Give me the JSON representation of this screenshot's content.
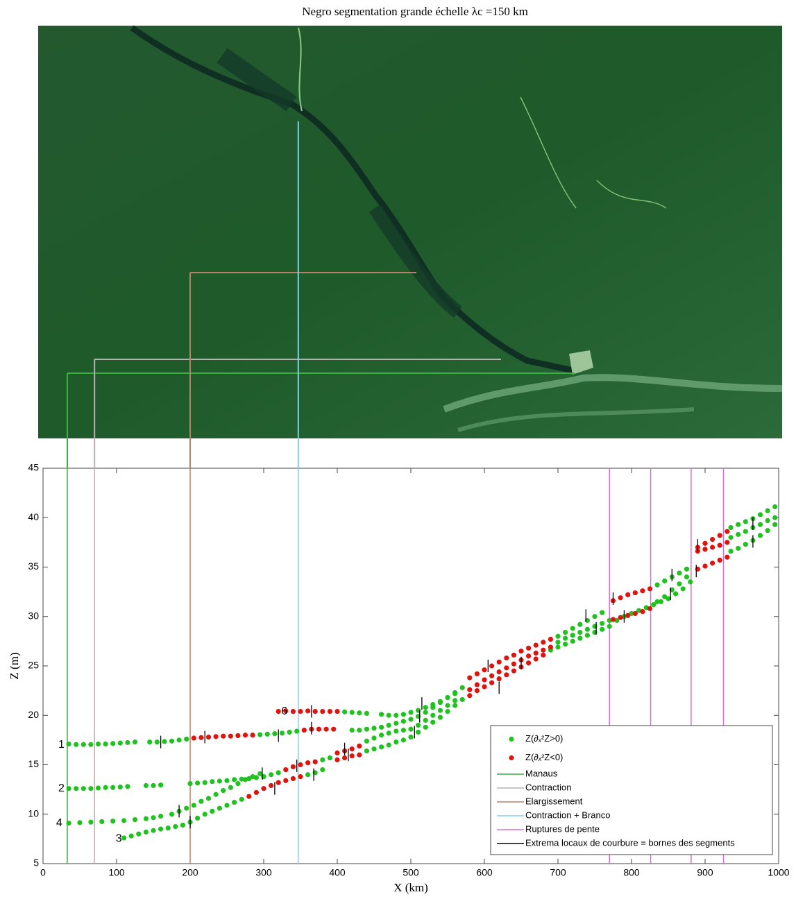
{
  "chart_data": {
    "type": "scatter",
    "title": "Negro segmentation grande échelle λc =150 km",
    "xlabel": "X (km)",
    "ylabel": "Z (m)",
    "xlim": [
      0,
      1000
    ],
    "xticks": [
      0,
      100,
      200,
      300,
      400,
      500,
      600,
      700,
      800,
      900,
      1000
    ],
    "ylim": [
      5,
      45
    ],
    "yticks": [
      5,
      10,
      15,
      20,
      25,
      30,
      35,
      40,
      45
    ],
    "legend": "lower right",
    "series": [
      {
        "name": "Z(∂ₓ²Z>0)",
        "color": "#1fc21f",
        "x": [
          35,
          45,
          55,
          65,
          75,
          85,
          95,
          105,
          115,
          125,
          145,
          155,
          165,
          175,
          185,
          195,
          295,
          305,
          315,
          325,
          335,
          345,
          420,
          430,
          440,
          450,
          460,
          470,
          480,
          490,
          500,
          510,
          520,
          530,
          540,
          550,
          560,
          410,
          420,
          430,
          440,
          460,
          470,
          480,
          490,
          500,
          510,
          520,
          530,
          540,
          550,
          560,
          570,
          35,
          45,
          55,
          65,
          75,
          85,
          95,
          105,
          115,
          140,
          150,
          160,
          200,
          210,
          220,
          230,
          240,
          250,
          260,
          270,
          280,
          290,
          300,
          310,
          320,
          380,
          390,
          440,
          450,
          460,
          470,
          480,
          490,
          500,
          510,
          520,
          530,
          540,
          550,
          560,
          35,
          50,
          65,
          80,
          95,
          110,
          125,
          140,
          150,
          160,
          175,
          185,
          195,
          205,
          215,
          225,
          235,
          245,
          255,
          265,
          275,
          285,
          295,
          110,
          120,
          130,
          140,
          150,
          160,
          170,
          180,
          190,
          200,
          210,
          220,
          230,
          240,
          250,
          260,
          270,
          360,
          370,
          380,
          440,
          450,
          460,
          470,
          480,
          490,
          500,
          510,
          520,
          530,
          540,
          550,
          560,
          700,
          710,
          720,
          730,
          740,
          750,
          760,
          835,
          845,
          855,
          865,
          875,
          935,
          945,
          955,
          965,
          975,
          985,
          995,
          700,
          710,
          720,
          730,
          740,
          750,
          760,
          770,
          835,
          845,
          855,
          865,
          875,
          935,
          945,
          955,
          965,
          975,
          985,
          995,
          570,
          690,
          700,
          710,
          720,
          730,
          740,
          750,
          760,
          770,
          780,
          790,
          800,
          810,
          820,
          830,
          840,
          850,
          860,
          870,
          880,
          935,
          945,
          955,
          965,
          975,
          985,
          995
        ],
        "y": [
          17.1,
          17.05,
          17.05,
          17.05,
          17.1,
          17.1,
          17.15,
          17.2,
          17.25,
          17.3,
          17.3,
          17.3,
          17.35,
          17.4,
          17.5,
          17.6,
          18.05,
          18.1,
          18.15,
          18.2,
          18.3,
          18.4,
          18.5,
          18.5,
          18.6,
          18.7,
          18.8,
          19.0,
          19.2,
          19.4,
          19.6,
          19.9,
          20.3,
          20.8,
          21.3,
          21.8,
          22.3,
          20.35,
          20.3,
          20.25,
          20.2,
          20.1,
          20.0,
          20.0,
          20.1,
          20.3,
          20.5,
          20.8,
          21.1,
          21.4,
          21.8,
          22.2,
          22.8,
          12.6,
          12.6,
          12.6,
          12.6,
          12.65,
          12.7,
          12.7,
          12.75,
          12.8,
          12.9,
          12.9,
          12.95,
          13.1,
          13.15,
          13.2,
          13.3,
          13.35,
          13.4,
          13.5,
          13.55,
          13.6,
          13.7,
          13.8,
          14.0,
          14.2,
          15.5,
          15.7,
          17.4,
          17.7,
          18.0,
          18.2,
          18.4,
          18.5,
          18.6,
          19.0,
          19.5,
          20.0,
          20.5,
          21.0,
          21.5,
          9.1,
          9.15,
          9.2,
          9.25,
          9.3,
          9.35,
          9.45,
          9.55,
          9.65,
          9.8,
          10.0,
          10.3,
          10.6,
          10.9,
          11.3,
          11.6,
          12.0,
          12.4,
          12.7,
          13.1,
          13.5,
          13.8,
          14.1,
          7.6,
          7.8,
          8.0,
          8.2,
          8.35,
          8.5,
          8.6,
          8.75,
          8.9,
          9.2,
          9.6,
          10.0,
          10.3,
          10.6,
          10.9,
          11.2,
          11.5,
          14.0,
          14.2,
          14.5,
          16.4,
          16.6,
          16.8,
          17.0,
          17.3,
          17.5,
          17.8,
          18.3,
          18.8,
          19.3,
          19.8,
          20.4,
          21.0,
          28.0,
          28.4,
          28.8,
          29.2,
          29.6,
          30.0,
          30.4,
          33.2,
          33.6,
          34.0,
          34.4,
          34.8,
          39.0,
          39.3,
          39.6,
          39.9,
          40.3,
          40.7,
          41.1,
          27.4,
          27.8,
          28.1,
          28.4,
          28.7,
          29.0,
          29.3,
          29.6,
          31.5,
          32.0,
          32.7,
          33.3,
          34.0,
          38.0,
          38.3,
          38.6,
          39.0,
          39.3,
          39.7,
          40.0,
          21.6,
          26.6,
          26.9,
          27.2,
          27.5,
          27.8,
          28.1,
          28.4,
          28.7,
          29.0,
          29.6,
          30.0,
          30.3,
          30.6,
          30.9,
          31.2,
          31.5,
          31.8,
          32.3,
          32.8,
          33.5,
          36.6,
          36.9,
          37.3,
          37.7,
          38.2,
          38.7,
          39.3
        ]
      },
      {
        "name": "Z(∂ₓ²Z<0)",
        "color": "#e0140f",
        "x": [
          205,
          215,
          225,
          235,
          245,
          255,
          265,
          275,
          285,
          355,
          365,
          375,
          385,
          395,
          320,
          330,
          340,
          350,
          360,
          370,
          380,
          390,
          400,
          330,
          340,
          350,
          360,
          370,
          400,
          410,
          420,
          430,
          280,
          290,
          300,
          310,
          320,
          330,
          340,
          350,
          400,
          410,
          420,
          430,
          580,
          590,
          600,
          610,
          620,
          630,
          640,
          650,
          660,
          670,
          680,
          690,
          775,
          785,
          795,
          805,
          815,
          825,
          890,
          900,
          910,
          920,
          930,
          580,
          590,
          600,
          610,
          620,
          630,
          640,
          650,
          660,
          670,
          680,
          690,
          775,
          785,
          795,
          805,
          815,
          825,
          890,
          900,
          910,
          920,
          930,
          580,
          590,
          600,
          610,
          620,
          630,
          640,
          650,
          660,
          670,
          680,
          890,
          900,
          910,
          920,
          930
        ],
        "y": [
          17.7,
          17.75,
          17.8,
          17.85,
          17.9,
          17.9,
          17.95,
          18.0,
          18.0,
          18.5,
          18.6,
          18.6,
          18.6,
          18.6,
          20.4,
          20.45,
          20.4,
          20.4,
          20.45,
          20.4,
          20.4,
          20.4,
          20.4,
          14.5,
          14.8,
          15.0,
          15.2,
          15.3,
          16.2,
          16.4,
          16.6,
          16.9,
          11.8,
          12.2,
          12.6,
          12.9,
          13.2,
          13.4,
          13.6,
          13.8,
          15.5,
          15.7,
          15.9,
          16.0,
          23.8,
          24.2,
          24.6,
          25.0,
          25.4,
          25.8,
          26.1,
          26.5,
          26.8,
          27.1,
          27.4,
          27.7,
          31.6,
          31.9,
          32.2,
          32.4,
          32.6,
          32.8,
          37.0,
          37.4,
          37.8,
          38.2,
          38.6,
          22.6,
          23.1,
          23.6,
          24.0,
          24.4,
          24.8,
          25.2,
          25.6,
          26.0,
          26.3,
          26.6,
          26.9,
          29.7,
          29.9,
          30.1,
          30.3,
          30.5,
          30.8,
          36.6,
          36.8,
          37.0,
          37.2,
          37.5,
          22.0,
          22.5,
          22.9,
          23.3,
          23.7,
          24.1,
          24.5,
          24.9,
          25.3,
          25.7,
          26.1,
          34.8,
          35.1,
          35.4,
          35.7,
          36.0
        ]
      }
    ],
    "vlines": [
      {
        "name": "Manaus",
        "color": "#3cb043",
        "x": [
          33
        ]
      },
      {
        "name": "Contraction",
        "color": "#b8b0b0",
        "x": [
          70
        ]
      },
      {
        "name": "Elargissement",
        "color": "#b5826a",
        "x": [
          200
        ]
      },
      {
        "name": "Contraction + Branco",
        "color": "#7fd0e8",
        "x": [
          347
        ]
      },
      {
        "name": "Ruptures de pente",
        "color": "#d070d0",
        "x": [
          770,
          826,
          881,
          925
        ]
      }
    ],
    "extrema": {
      "name": "Extrema locaux de courbure = bornes des segments",
      "color": "#000000",
      "x": [
        160,
        220,
        320,
        365,
        365,
        185,
        200,
        298,
        315,
        345,
        368,
        410,
        415,
        505,
        512,
        515,
        605,
        620,
        650,
        738,
        752,
        775,
        790,
        855,
        853,
        890,
        888,
        965,
        965
      ],
      "y": [
        17.3,
        17.8,
        17.95,
        20.4,
        18.7,
        10.3,
        9.2,
        14.1,
        12.6,
        14.9,
        14.0,
        16.6,
        16.0,
        18.3,
        19.9,
        21.2,
        25.0,
        22.8,
        25.3,
        30.1,
        28.8,
        31.8,
        30.0,
        34.2,
        32.3,
        37.2,
        34.6,
        39.4,
        37.6
      ]
    },
    "annotations": [
      {
        "text": "1",
        "x": 25,
        "y": 17.0
      },
      {
        "text": "2",
        "x": 25,
        "y": 12.6
      },
      {
        "text": "4",
        "x": 22,
        "y": 9.1
      },
      {
        "text": "3",
        "x": 103,
        "y": 7.5
      },
      {
        "text": "6",
        "x": 328,
        "y": 20.4
      }
    ]
  }
}
